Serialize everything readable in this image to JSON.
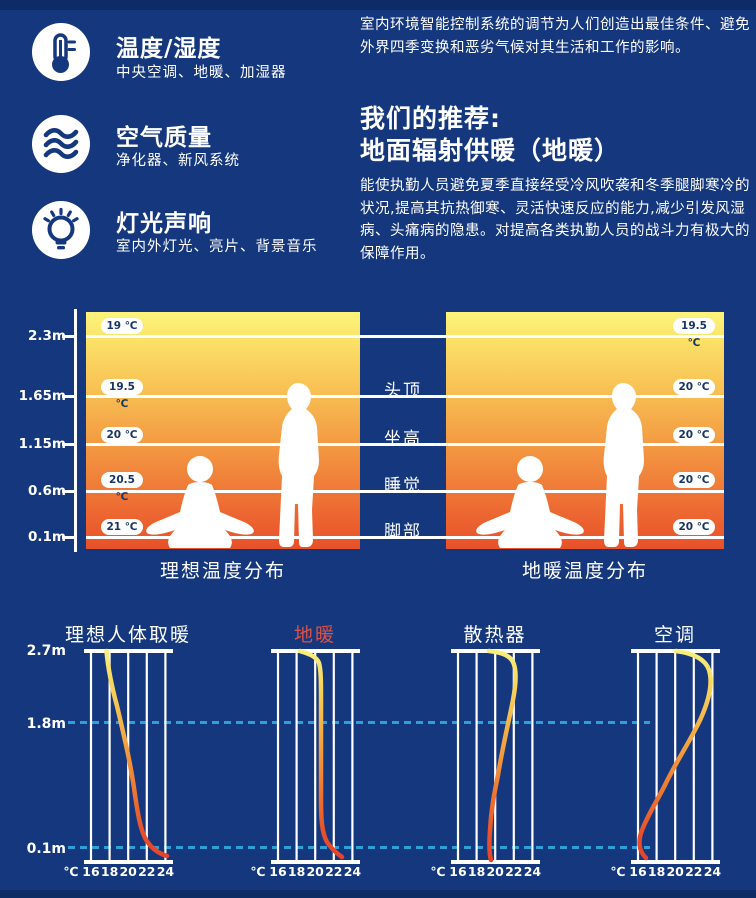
{
  "page": {
    "background": "#15377e",
    "edge_strip": "#0d2c66",
    "dashed_guide_color": "#2da0d8",
    "panel_gradient": [
      "#fdf47c",
      "#f8c254",
      "#f0823a",
      "#e85129"
    ],
    "curve_gradient": [
      "#f9ef7d",
      "#f2a843",
      "#e4452a"
    ]
  },
  "features": [
    {
      "icon": "thermometer-icon",
      "title": "温度/湿度",
      "subtitle": "中央空调、地暖、加湿器"
    },
    {
      "icon": "air-waves-icon",
      "title": "空气质量",
      "subtitle": "净化器、新风系统"
    },
    {
      "icon": "light-bulb-icon",
      "title": "灯光声响",
      "subtitle": "室内外灯光、亮片、背景音乐"
    }
  ],
  "intro": {
    "paragraph1": "室内环境智能控制系统的调节为人们创造出最佳条件、避免外界四季变换和恶劣气候对其生活和工作的影响。",
    "recommend_line1": "我们的推荐:",
    "recommend_line2": "地面辐射供暖（地暖）",
    "paragraph2": "能使执勤人员避免夏季直接经受冷风吹袭和冬季腿脚寒冷的状况,提高其抗热御寒、灵活快速反应的能力,减少引发风湿病、头痛病的隐患。对提高各类执勤人员的战斗力有极大的保障作用。"
  },
  "distribution": {
    "height_labels": [
      "2.3m",
      "1.65m",
      "1.15m",
      "0.6m",
      "0.1m"
    ],
    "zone_labels": [
      "头顶",
      "坐高",
      "睡觉",
      "脚部"
    ],
    "left_panel": {
      "title": "理想温度分布",
      "temps": [
        "19 ℃",
        "19.5 ℃",
        "20 ℃",
        "20.5 ℃",
        "21 ℃"
      ]
    },
    "right_panel": {
      "title": "地暖温度分布",
      "temps": [
        "19.5 ℃",
        "20 ℃",
        "20 ℃",
        "20 ℃",
        "20 ℃"
      ]
    }
  },
  "profiles": {
    "height_labels": [
      "2.7m",
      "1.8m",
      "0.1m"
    ],
    "x_ticks": [
      "℃",
      "16",
      "18",
      "20",
      "22",
      "24"
    ],
    "charts": [
      {
        "title": "理想人体取暖",
        "title_color": "#ffffff"
      },
      {
        "title": "地暖",
        "title_color": "#dd5244"
      },
      {
        "title": "散热器",
        "title_color": "#ffffff"
      },
      {
        "title": "空调",
        "title_color": "#ffffff"
      }
    ]
  },
  "chart_data": [
    {
      "type": "area",
      "title": "理想温度分布",
      "ylabel": "height",
      "categories": [
        "2.3m",
        "1.65m",
        "1.15m",
        "0.6m",
        "0.1m"
      ],
      "values": [
        19,
        19.5,
        20,
        20.5,
        21
      ],
      "unit": "℃",
      "annotations": [
        "头顶",
        "坐高",
        "睡觉",
        "脚部"
      ],
      "legend_position": "none",
      "grid": true
    },
    {
      "type": "area",
      "title": "地暖温度分布",
      "ylabel": "height",
      "categories": [
        "2.3m",
        "1.65m",
        "1.15m",
        "0.6m",
        "0.1m"
      ],
      "values": [
        19.5,
        20,
        20,
        20,
        20
      ],
      "unit": "℃",
      "legend_position": "none",
      "grid": true
    },
    {
      "type": "line",
      "title": "理想人体取暖",
      "xlabel": "℃",
      "ylabel": "height (m)",
      "xlim": [
        16,
        24
      ],
      "ylim": [
        0,
        2.8
      ],
      "x_ticks": [
        16,
        18,
        20,
        22,
        24
      ],
      "y_guides": [
        1.8,
        0.1
      ],
      "points_temp_height": [
        [
          23.9,
          0.05
        ],
        [
          22.4,
          0.2
        ],
        [
          21.0,
          0.6
        ],
        [
          20.3,
          1.2
        ],
        [
          19.5,
          1.8
        ],
        [
          18.3,
          2.5
        ],
        [
          17.9,
          2.75
        ]
      ]
    },
    {
      "type": "line",
      "title": "地暖",
      "xlabel": "℃",
      "ylabel": "height (m)",
      "xlim": [
        16,
        24
      ],
      "ylim": [
        0,
        2.8
      ],
      "x_ticks": [
        16,
        18,
        20,
        22,
        24
      ],
      "y_guides": [
        1.8,
        0.1
      ],
      "points_temp_height": [
        [
          22.9,
          0.05
        ],
        [
          21.8,
          0.2
        ],
        [
          20.6,
          0.6
        ],
        [
          20.5,
          1.5
        ],
        [
          20.5,
          2.3
        ],
        [
          19.8,
          2.6
        ],
        [
          18.5,
          2.75
        ]
      ]
    },
    {
      "type": "line",
      "title": "散热器",
      "xlabel": "℃",
      "ylabel": "height (m)",
      "xlim": [
        16,
        24
      ],
      "ylim": [
        0,
        2.8
      ],
      "x_ticks": [
        16,
        18,
        20,
        22,
        24
      ],
      "y_guides": [
        1.8,
        0.1
      ],
      "points_temp_height": [
        [
          19.9,
          0.05
        ],
        [
          19.4,
          0.2
        ],
        [
          19.7,
          0.6
        ],
        [
          20.3,
          1.2
        ],
        [
          21.3,
          1.8
        ],
        [
          22.2,
          2.45
        ],
        [
          19.8,
          2.75
        ]
      ]
    },
    {
      "type": "line",
      "title": "空调",
      "xlabel": "℃",
      "ylabel": "height (m)",
      "xlim": [
        16,
        24
      ],
      "ylim": [
        0,
        2.8
      ],
      "x_ticks": [
        16,
        18,
        20,
        22,
        24
      ],
      "y_guides": [
        1.8,
        0.1
      ],
      "points_temp_height": [
        [
          16.4,
          0.05
        ],
        [
          15.8,
          0.2
        ],
        [
          16.8,
          0.7
        ],
        [
          18.9,
          1.4
        ],
        [
          21.8,
          1.8
        ],
        [
          23.5,
          2.45
        ],
        [
          20.2,
          2.75
        ]
      ]
    }
  ]
}
